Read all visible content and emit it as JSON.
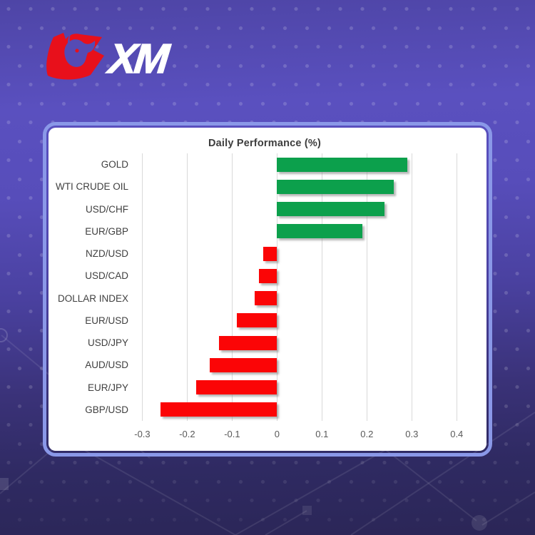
{
  "brand": {
    "logo_text": "XM",
    "logo_red": "#e8101b"
  },
  "background": {
    "accent_border": "#8a98e8",
    "top_purple": "#5a50bf",
    "bottom_navy": "#2b2657"
  },
  "chart_data": {
    "type": "bar",
    "orientation": "horizontal",
    "title": "Daily Performance (%)",
    "categories": [
      "GOLD",
      "WTI CRUDE OIL",
      "USD/CHF",
      "EUR/GBP",
      "NZD/USD",
      "USD/CAD",
      "DOLLAR INDEX",
      "EUR/USD",
      "USD/JPY",
      "AUD/USD",
      "EUR/JPY",
      "GBP/USD"
    ],
    "values": [
      0.29,
      0.26,
      0.24,
      0.19,
      -0.03,
      -0.04,
      -0.05,
      -0.09,
      -0.13,
      -0.15,
      -0.18,
      -0.26
    ],
    "xlabel": "",
    "ylabel": "",
    "xticks": [
      -0.3,
      -0.2,
      -0.1,
      0,
      0.1,
      0.2,
      0.3,
      0.4
    ],
    "xlim": [
      -0.315,
      0.425
    ],
    "grid": true,
    "legend": false,
    "positive_color": "#0ca04c",
    "negative_color": "#fb0506"
  }
}
